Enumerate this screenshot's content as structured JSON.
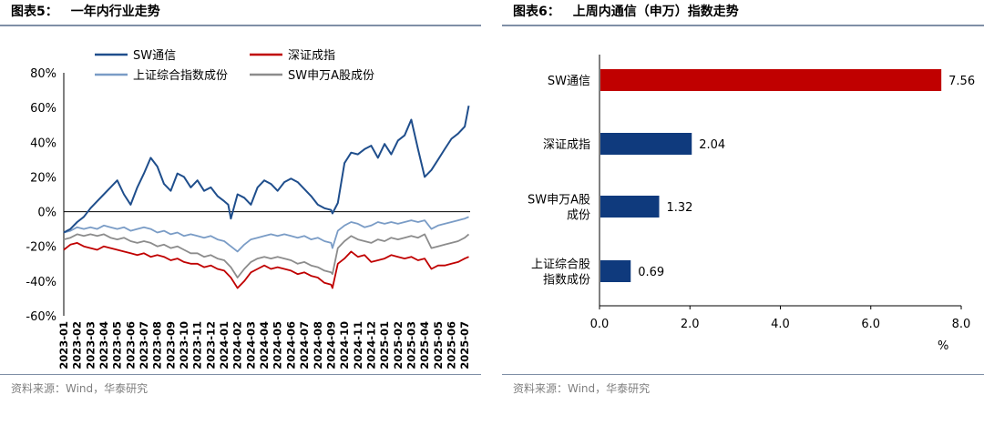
{
  "left_panel": {
    "figure_title": "图表5：",
    "figure_caption": "一年内行业走势",
    "source": "资料来源：Wind，华泰研究"
  },
  "right_panel": {
    "figure_title": "图表6：",
    "figure_caption": "上周内通信（申万）指数走势",
    "source": "资料来源：Wind，华泰研究"
  },
  "colors": {
    "sw_comm": "#1f4e8c",
    "szse": "#c00000",
    "sse_comp": "#7a9cc6",
    "sw_a": "#8c8c8c",
    "bar_highlight": "#c00000",
    "bar_default": "#0f3a7d"
  },
  "chart_data": [
    {
      "type": "line",
      "title": "",
      "xlabel": "",
      "ylabel": "",
      "ylim": [
        -60,
        80
      ],
      "y_unit": "%",
      "yticks": [
        "80%",
        "60%",
        "40%",
        "20%",
        "0%",
        "-20%",
        "-40%",
        "-60%"
      ],
      "x_tick_labels": [
        "2023-01",
        "2023-02",
        "2023-03",
        "2023-04",
        "2023-05",
        "2023-06",
        "2023-07",
        "2023-08",
        "2023-09",
        "2023-10",
        "2023-11",
        "2023-12",
        "2024-01",
        "2024-02",
        "2024-03",
        "2024-04",
        "2024-05",
        "2024-06",
        "2024-07",
        "2024-08",
        "2024-09",
        "2024-10",
        "2024-11",
        "2024-12",
        "2025-01",
        "2025-02",
        "2025-03",
        "2025-04",
        "2025-05",
        "2025-06",
        "2025-07"
      ],
      "x_tick_values": [
        0,
        1,
        2,
        3,
        4,
        5,
        6,
        7,
        8,
        9,
        10,
        11,
        12,
        13,
        14,
        15,
        16,
        17,
        18,
        19,
        20,
        21,
        22,
        23,
        24,
        25,
        26,
        27,
        28,
        29,
        30
      ],
      "x_range": [
        0,
        30.4
      ],
      "legend_position": "top",
      "legend_entries": [
        "SW通信",
        "深证成指",
        "上证综合指数成份",
        "SW申万A股成份"
      ],
      "series": [
        {
          "name": "SW通信",
          "x": [
            0,
            0.5,
            1,
            1.5,
            2,
            2.5,
            3,
            3.5,
            4,
            4.5,
            5,
            5.5,
            6,
            6.5,
            7,
            7.5,
            8,
            8.5,
            9,
            9.5,
            10,
            10.5,
            11,
            11.5,
            12,
            12.3,
            12.5,
            13,
            13.5,
            14,
            14.5,
            15,
            15.5,
            16,
            16.5,
            17,
            17.5,
            18,
            18.5,
            19,
            19.5,
            20,
            20.1,
            20.5,
            21,
            21.5,
            22,
            22.5,
            23,
            23.5,
            24,
            24.5,
            25,
            25.5,
            26,
            26.5,
            27,
            27.5,
            28,
            28.5,
            29,
            29.5,
            30,
            30.3
          ],
          "values": [
            -12,
            -10,
            -6,
            -3,
            2,
            6,
            10,
            14,
            18,
            10,
            4,
            14,
            22,
            31,
            26,
            16,
            12,
            22,
            20,
            14,
            18,
            12,
            14,
            9,
            6,
            4,
            -4,
            10,
            8,
            4,
            14,
            18,
            16,
            12,
            17,
            19,
            17,
            13,
            9,
            4,
            2,
            1,
            -1,
            5,
            28,
            34,
            33,
            36,
            38,
            31,
            39,
            33,
            41,
            44,
            53,
            36,
            20,
            24,
            30,
            36,
            42,
            45,
            49,
            61
          ]
        },
        {
          "name": "深证成指",
          "x": [
            0,
            0.5,
            1,
            1.5,
            2,
            2.5,
            3,
            3.5,
            4,
            4.5,
            5,
            5.5,
            6,
            6.5,
            7,
            7.5,
            8,
            8.5,
            9,
            9.5,
            10,
            10.5,
            11,
            11.5,
            12,
            12.5,
            13,
            13.5,
            14,
            14.5,
            15,
            15.5,
            16,
            16.5,
            17,
            17.5,
            18,
            18.5,
            19,
            19.5,
            20,
            20.1,
            20.5,
            21,
            21.5,
            22,
            22.5,
            23,
            23.5,
            24,
            24.5,
            25,
            25.5,
            26,
            26.5,
            27,
            27.5,
            28,
            28.5,
            29,
            29.5,
            30,
            30.3
          ],
          "values": [
            -22,
            -19,
            -18,
            -20,
            -21,
            -22,
            -20,
            -21,
            -22,
            -23,
            -24,
            -25,
            -24,
            -26,
            -25,
            -26,
            -28,
            -27,
            -29,
            -30,
            -30,
            -32,
            -31,
            -33,
            -34,
            -38,
            -44,
            -40,
            -35,
            -33,
            -31,
            -33,
            -32,
            -33,
            -34,
            -36,
            -35,
            -37,
            -38,
            -41,
            -42,
            -44,
            -30,
            -27,
            -23,
            -26,
            -25,
            -29,
            -28,
            -27,
            -25,
            -26,
            -27,
            -26,
            -28,
            -27,
            -33,
            -31,
            -31,
            -30,
            -29,
            -27,
            -26
          ]
        },
        {
          "name": "上证综合指数成份",
          "x": [
            0,
            0.5,
            1,
            1.5,
            2,
            2.5,
            3,
            3.5,
            4,
            4.5,
            5,
            5.5,
            6,
            6.5,
            7,
            7.5,
            8,
            8.5,
            9,
            9.5,
            10,
            10.5,
            11,
            11.5,
            12,
            12.5,
            13,
            13.5,
            14,
            14.5,
            15,
            15.5,
            16,
            16.5,
            17,
            17.5,
            18,
            18.5,
            19,
            19.5,
            20,
            20.1,
            20.5,
            21,
            21.5,
            22,
            22.5,
            23,
            23.5,
            24,
            24.5,
            25,
            25.5,
            26,
            26.5,
            27,
            27.5,
            28,
            28.5,
            29,
            29.5,
            30,
            30.3
          ],
          "values": [
            -12,
            -11,
            -9,
            -10,
            -9,
            -10,
            -8,
            -9,
            -10,
            -9,
            -11,
            -10,
            -9,
            -10,
            -12,
            -11,
            -13,
            -12,
            -14,
            -13,
            -14,
            -15,
            -14,
            -16,
            -17,
            -20,
            -23,
            -19,
            -16,
            -15,
            -14,
            -13,
            -14,
            -13,
            -14,
            -15,
            -14,
            -16,
            -15,
            -17,
            -18,
            -21,
            -11,
            -8,
            -6,
            -7,
            -9,
            -8,
            -6,
            -7,
            -6,
            -7,
            -6,
            -5,
            -6,
            -5,
            -10,
            -8,
            -7,
            -6,
            -5,
            -4,
            -3
          ]
        },
        {
          "name": "SW申万A股成份",
          "x": [
            0,
            0.5,
            1,
            1.5,
            2,
            2.5,
            3,
            3.5,
            4,
            4.5,
            5,
            5.5,
            6,
            6.5,
            7,
            7.5,
            8,
            8.5,
            9,
            9.5,
            10,
            10.5,
            11,
            11.5,
            12,
            12.5,
            13,
            13.5,
            14,
            14.5,
            15,
            15.5,
            16,
            16.5,
            17,
            17.5,
            18,
            18.5,
            19,
            19.5,
            20,
            20.1,
            20.5,
            21,
            21.5,
            22,
            22.5,
            23,
            23.5,
            24,
            24.5,
            25,
            25.5,
            26,
            26.5,
            27,
            27.5,
            28,
            28.5,
            29,
            29.5,
            30,
            30.3
          ],
          "values": [
            -16,
            -15,
            -13,
            -14,
            -13,
            -14,
            -13,
            -15,
            -16,
            -15,
            -17,
            -18,
            -17,
            -18,
            -20,
            -19,
            -21,
            -20,
            -22,
            -24,
            -24,
            -26,
            -25,
            -27,
            -28,
            -32,
            -38,
            -33,
            -29,
            -27,
            -26,
            -27,
            -26,
            -27,
            -28,
            -30,
            -29,
            -31,
            -32,
            -34,
            -35,
            -36,
            -21,
            -17,
            -14,
            -16,
            -17,
            -18,
            -16,
            -17,
            -15,
            -16,
            -15,
            -14,
            -15,
            -13,
            -21,
            -20,
            -19,
            -18,
            -17,
            -15,
            -13
          ]
        }
      ]
    },
    {
      "type": "bar",
      "orientation": "horizontal",
      "title": "",
      "xlabel": "%",
      "ylabel": "",
      "xlim": [
        0,
        8
      ],
      "x_tick_labels": [
        "0.0",
        "2.0",
        "4.0",
        "6.0",
        "8.0"
      ],
      "x_tick_values": [
        0,
        2,
        4,
        6,
        8
      ],
      "categories": [
        [
          "SW通信"
        ],
        [
          "深证成指"
        ],
        [
          "SW申万A股",
          "成份"
        ],
        [
          "上证综合股",
          "指数成份"
        ]
      ],
      "values": [
        7.56,
        2.04,
        1.32,
        0.69
      ],
      "value_labels": [
        "7.56",
        "2.04",
        "1.32",
        "0.69"
      ]
    }
  ]
}
